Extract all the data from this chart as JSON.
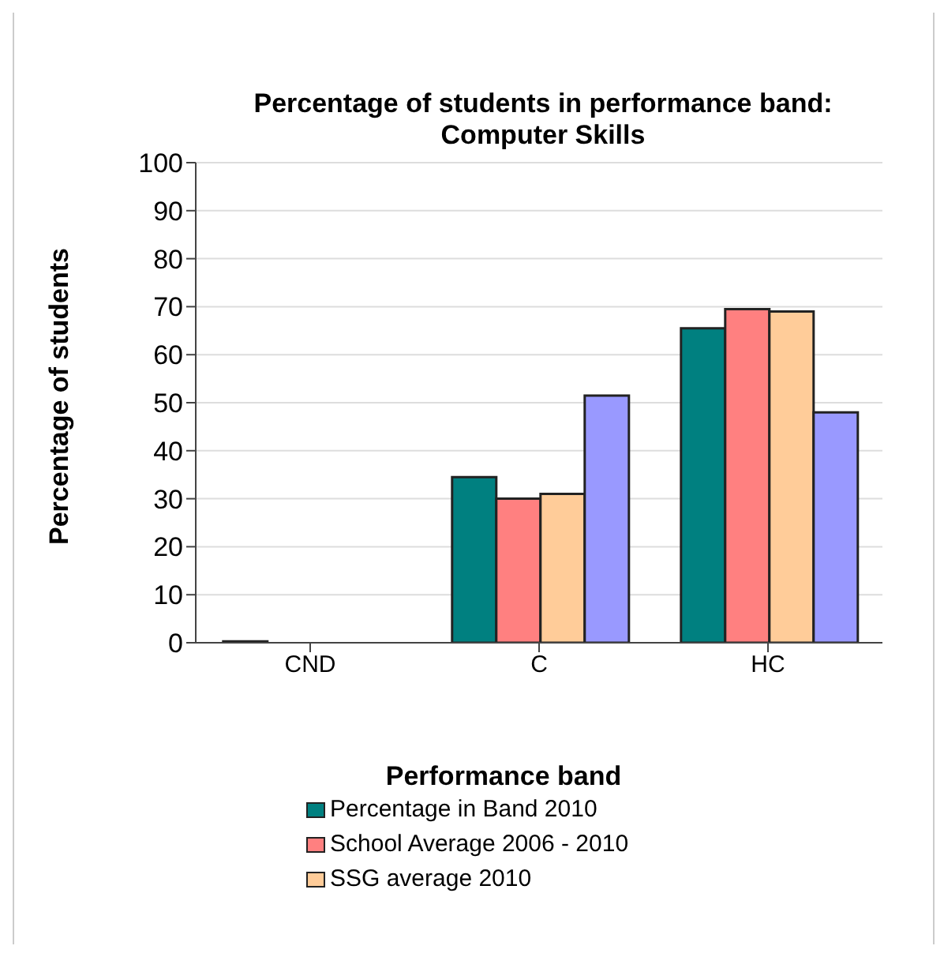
{
  "chart_data": {
    "type": "bar",
    "title": "Percentage of students in performance band: Computer Skills",
    "xlabel": "Performance band",
    "ylabel": "Percentage of students",
    "categories": [
      "CND",
      "C",
      "HC"
    ],
    "series": [
      {
        "name": "Percentage in Band 2010",
        "color": "#008080",
        "values": [
          0.3,
          34.5,
          65.5
        ]
      },
      {
        "name": "School Average 2006 - 2010",
        "color": "#ff8080",
        "values": [
          null,
          30,
          69.5
        ]
      },
      {
        "name": "SSG average 2010",
        "color": "#ffcc99",
        "values": [
          null,
          31,
          69
        ]
      },
      {
        "color": "#9999ff",
        "values": [
          0,
          51.5,
          48
        ]
      }
    ],
    "ylim": [
      0,
      100
    ],
    "yticks": [
      0,
      10,
      20,
      30,
      40,
      50,
      60,
      70,
      80,
      90,
      100
    ],
    "grid": "y",
    "legend": "bottom"
  }
}
